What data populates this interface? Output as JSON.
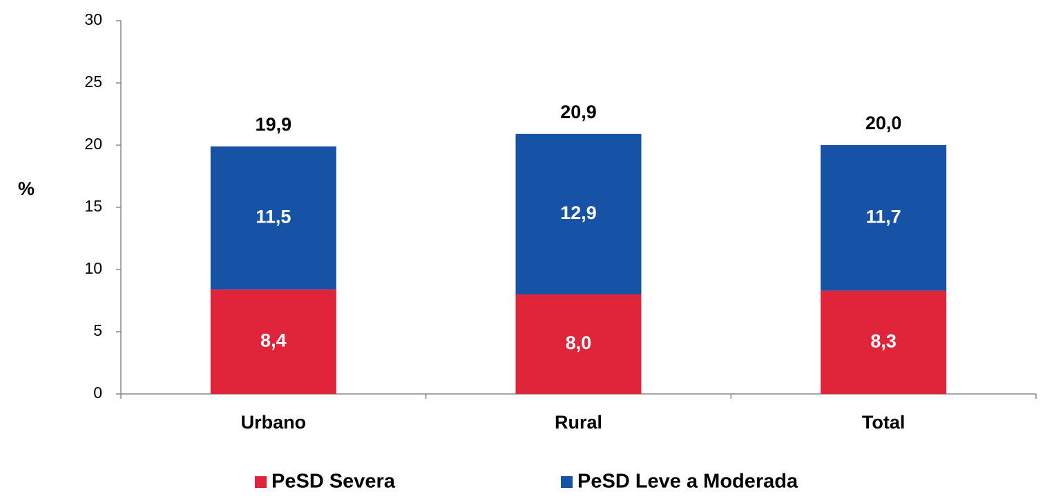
{
  "chart_data": {
    "type": "stacked_bar",
    "categories": [
      "Urbano",
      "Rural",
      "Total"
    ],
    "series": [
      {
        "name": "PeSD Severa",
        "color": "#e0243a",
        "values": [
          8.4,
          8.0,
          8.3
        ],
        "value_labels": [
          "8,4",
          "8,0",
          "8,3"
        ]
      },
      {
        "name": "PeSD Leve a Moderada",
        "color": "#1652a6",
        "values": [
          11.5,
          12.9,
          11.7
        ],
        "value_labels": [
          "11,5",
          "12,9",
          "11,7"
        ]
      }
    ],
    "totals": [
      19.9,
      20.9,
      20.0
    ],
    "total_labels": [
      "19,9",
      "20,9",
      "20,0"
    ],
    "ylabel": "%",
    "ylim": [
      0,
      30
    ],
    "yticks": [
      0,
      5,
      10,
      15,
      20,
      25,
      30
    ],
    "legend": "bottom"
  }
}
